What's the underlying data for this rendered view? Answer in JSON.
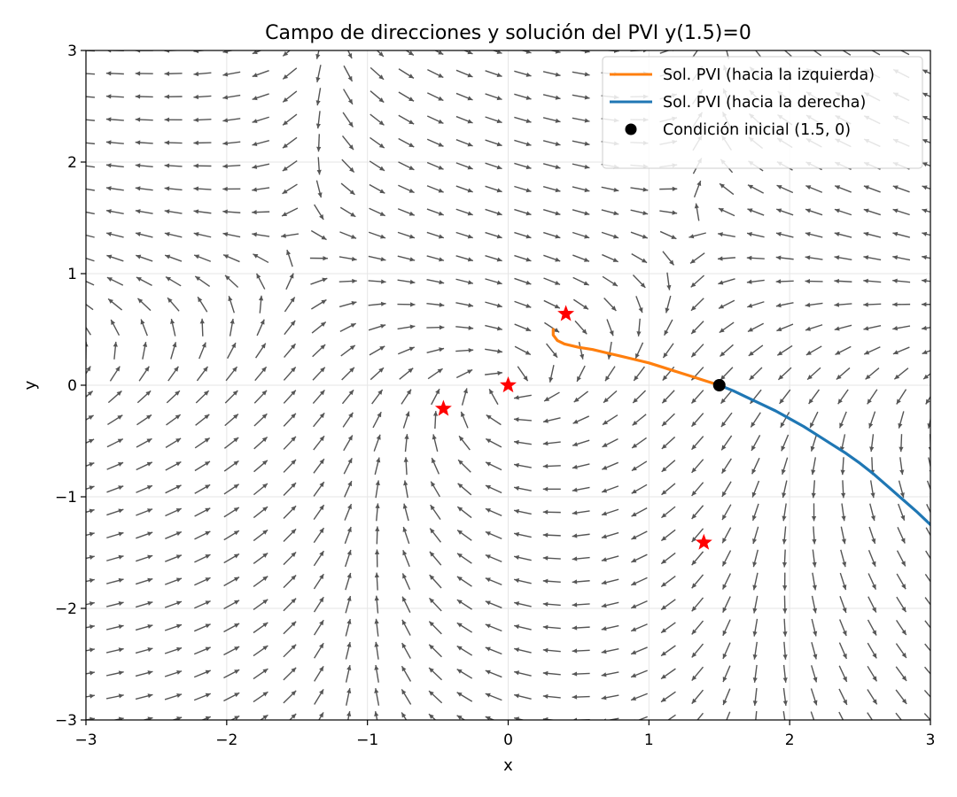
{
  "chart_data": {
    "type": "line",
    "title": "Campo de direcciones y solución del PVI  y(1.5)=0",
    "xlabel": "x",
    "ylabel": "y",
    "xlim": [
      -3,
      3
    ],
    "ylim": [
      -3,
      3
    ],
    "xticks": [
      -3,
      -2,
      -1,
      0,
      1,
      2,
      3
    ],
    "yticks": [
      -3,
      -2,
      -1,
      0,
      1,
      2,
      3
    ],
    "xtick_labels": [
      "−3",
      "−2",
      "−1",
      "0",
      "1",
      "2",
      "3"
    ],
    "ytick_labels": [
      "−3",
      "−2",
      "−1",
      "0",
      "1",
      "2",
      "3"
    ],
    "grid": true,
    "legend_position": "top-right",
    "direction_field": {
      "x_range": [
        -3,
        3
      ],
      "y_range": [
        -3,
        3
      ],
      "grid_points": 30,
      "color": "#555555"
    },
    "series": [
      {
        "name": "Sol. PVI (hacia la izquierda)",
        "color": "#ff7f0e",
        "x": [
          1.5,
          1.4,
          1.3,
          1.2,
          1.1,
          1.0,
          0.9,
          0.8,
          0.7,
          0.6,
          0.5,
          0.4,
          0.35,
          0.32,
          0.32
        ],
        "y": [
          0.0,
          0.04,
          0.08,
          0.12,
          0.16,
          0.2,
          0.23,
          0.26,
          0.29,
          0.32,
          0.34,
          0.37,
          0.4,
          0.45,
          0.5
        ]
      },
      {
        "name": "Sol. PVI (hacia la derecha)",
        "color": "#1f77b4",
        "x": [
          1.5,
          1.6,
          1.7,
          1.8,
          1.9,
          2.0,
          2.1,
          2.2,
          2.3,
          2.4,
          2.5,
          2.6,
          2.7,
          2.8,
          2.9,
          3.0
        ],
        "y": [
          0.0,
          -0.05,
          -0.11,
          -0.17,
          -0.23,
          -0.3,
          -0.37,
          -0.45,
          -0.53,
          -0.61,
          -0.7,
          -0.8,
          -0.91,
          -1.02,
          -1.13,
          -1.25
        ]
      }
    ],
    "initial_condition": {
      "name": "Condición inicial (1.5, 0)",
      "x": 1.5,
      "y": 0,
      "color": "#000000"
    },
    "equilibria": {
      "color": "#ff0000",
      "points": [
        {
          "x": 0.41,
          "y": 0.64
        },
        {
          "x": 0.0,
          "y": 0.0
        },
        {
          "x": -0.46,
          "y": -0.21
        },
        {
          "x": 1.39,
          "y": -1.41
        }
      ]
    }
  }
}
